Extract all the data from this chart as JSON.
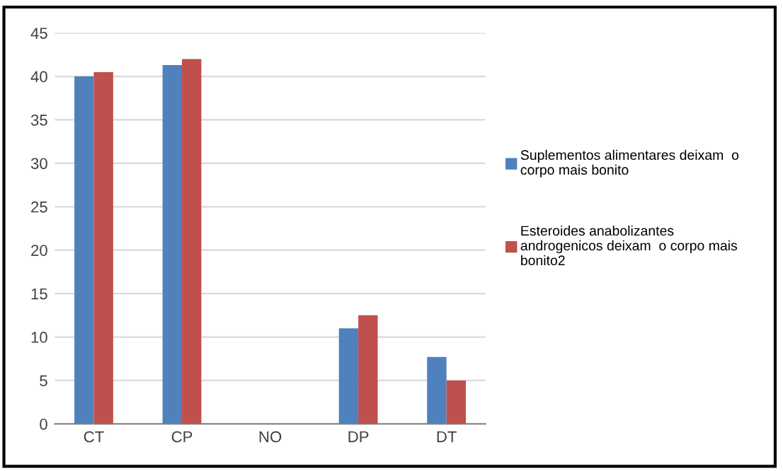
{
  "chart_data": {
    "type": "bar",
    "categories": [
      "CT",
      "CP",
      "NO",
      "DP",
      "DT"
    ],
    "series": [
      {
        "name": "Suplementos alimentares deixam  o\ncorpo mais bonito",
        "color": "#4f81bd",
        "values": [
          40,
          41.3,
          0,
          11,
          7.7
        ]
      },
      {
        "name": "Esteroides anabolizantes\nandrogenicos deixam  o corpo mais\nbonito2",
        "color": "#c0504d",
        "values": [
          40.5,
          42,
          0,
          12.5,
          5
        ]
      }
    ],
    "ylim": [
      0,
      45
    ],
    "yticks": [
      0,
      5,
      10,
      15,
      20,
      25,
      30,
      35,
      40,
      45
    ],
    "grid": "y",
    "legend": "right"
  }
}
